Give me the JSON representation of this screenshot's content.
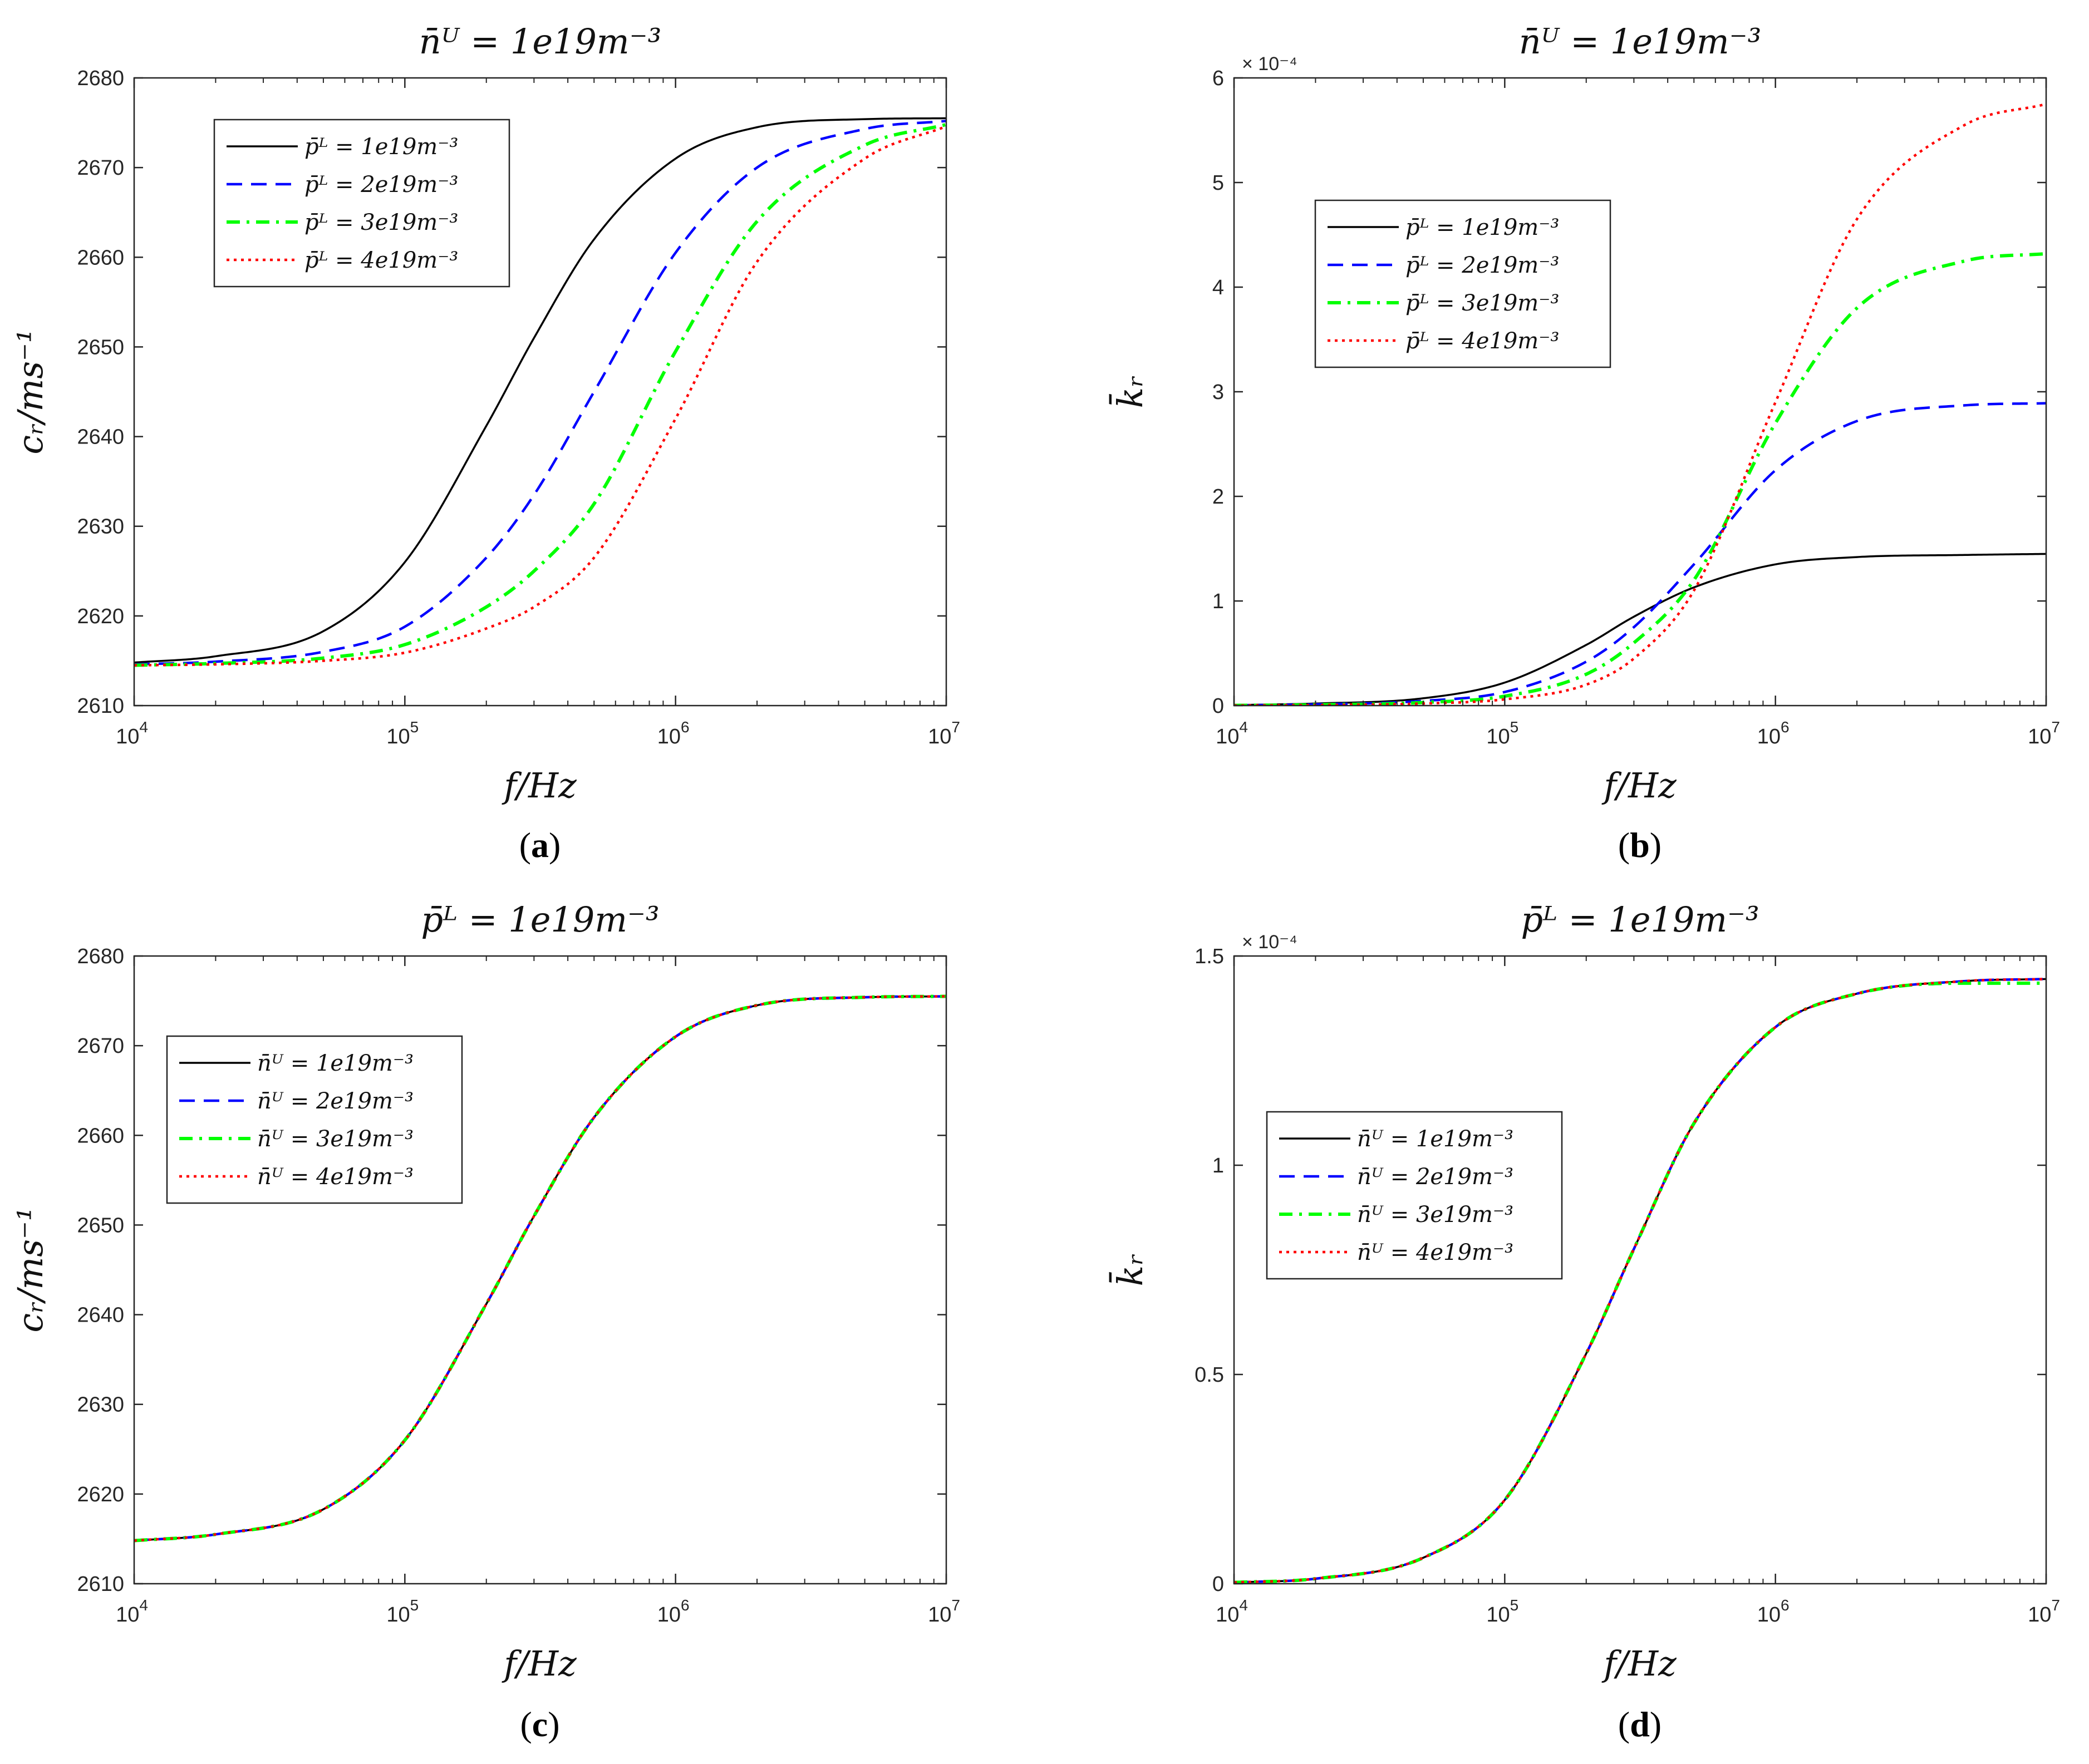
{
  "figure": {
    "captions": [
      "(a)",
      "(b)",
      "(c)",
      "(d)"
    ],
    "caption_parts": [
      {
        "open": "(",
        "letter": "a",
        "close": ")"
      },
      {
        "open": "(",
        "letter": "b",
        "close": ")"
      },
      {
        "open": "(",
        "letter": "c",
        "close": ")"
      },
      {
        "open": "(",
        "letter": "d",
        "close": ")"
      }
    ]
  },
  "chart_data": [
    {
      "type": "line",
      "xscale": "log",
      "title": "n̄ᵁ = 1e19m⁻³",
      "xlabel": "f/Hz",
      "ylabel": "cᵣ/ms⁻¹",
      "xlim": [
        10000,
        10000000
      ],
      "ylim": [
        2610,
        2680
      ],
      "xticks": [
        10000,
        100000,
        1000000,
        10000000
      ],
      "xtick_labels": [
        {
          "base": "10",
          "exp": "4"
        },
        {
          "base": "10",
          "exp": "5"
        },
        {
          "base": "10",
          "exp": "6"
        },
        {
          "base": "10",
          "exp": "7"
        }
      ],
      "yticks": [
        2610,
        2620,
        2630,
        2640,
        2650,
        2660,
        2670,
        2680
      ],
      "ytick_labels": [
        "2610",
        "2620",
        "2630",
        "2640",
        "2650",
        "2660",
        "2670",
        "2680"
      ],
      "exponent_label": "",
      "legend": "upper-left",
      "x": [
        10000,
        20000,
        50000,
        100000,
        200000,
        300000,
        500000,
        1000000,
        2000000,
        5000000,
        10000000
      ],
      "series": [
        {
          "name": "p̄ᴸ = 1e19m⁻³",
          "color": "#000000",
          "style": "solid",
          "values": [
            2614.8,
            2615.5,
            2618.3,
            2626.0,
            2641.2,
            2651.0,
            2662.0,
            2671.0,
            2674.5,
            2675.4,
            2675.5
          ]
        },
        {
          "name": "p̄ᴸ = 2e19m⁻³",
          "color": "#0000ff",
          "style": "dashed",
          "values": [
            2614.6,
            2614.9,
            2616.0,
            2618.8,
            2626.5,
            2633.5,
            2645.0,
            2660.5,
            2670.0,
            2674.3,
            2675.2
          ]
        },
        {
          "name": "p̄ᴸ = 3e19m⁻³",
          "color": "#00ff00",
          "style": "dashdot",
          "values": [
            2614.5,
            2614.7,
            2615.3,
            2616.8,
            2621.0,
            2625.0,
            2632.5,
            2649.5,
            2664.0,
            2672.5,
            2674.8
          ]
        },
        {
          "name": "p̄ᴸ = 4e19m⁻³",
          "color": "#ff0000",
          "style": "dotted",
          "values": [
            2614.5,
            2614.6,
            2615.0,
            2615.9,
            2618.6,
            2621.0,
            2626.5,
            2642.0,
            2659.5,
            2671.0,
            2674.6
          ]
        }
      ]
    },
    {
      "type": "line",
      "xscale": "log",
      "title": "n̄ᵁ = 1e19m⁻³",
      "xlabel": "f/Hz",
      "ylabel": "k̄ᵣ",
      "xlim": [
        10000,
        10000000
      ],
      "ylim": [
        0,
        6
      ],
      "xticks": [
        10000,
        100000,
        1000000,
        10000000
      ],
      "xtick_labels": [
        {
          "base": "10",
          "exp": "4"
        },
        {
          "base": "10",
          "exp": "5"
        },
        {
          "base": "10",
          "exp": "6"
        },
        {
          "base": "10",
          "exp": "7"
        }
      ],
      "yticks": [
        0,
        1,
        2,
        3,
        4,
        5,
        6
      ],
      "ytick_labels": [
        "0",
        "1",
        "2",
        "3",
        "4",
        "5",
        "6"
      ],
      "exponent_label": "× 10⁻⁴",
      "legend": "upper-left",
      "x": [
        10000,
        20000,
        50000,
        100000,
        200000,
        300000,
        500000,
        1000000,
        2000000,
        5000000,
        10000000
      ],
      "series": [
        {
          "name": "p̄ᴸ = 1e19m⁻³",
          "color": "#000000",
          "style": "solid",
          "values": [
            0.005,
            0.02,
            0.07,
            0.22,
            0.58,
            0.85,
            1.13,
            1.35,
            1.42,
            1.44,
            1.45
          ]
        },
        {
          "name": "p̄ᴸ = 2e19m⁻³",
          "color": "#0000ff",
          "style": "dashed",
          "values": [
            0.003,
            0.012,
            0.045,
            0.13,
            0.42,
            0.75,
            1.35,
            2.25,
            2.72,
            2.87,
            2.89
          ]
        },
        {
          "name": "p̄ᴸ = 3e19m⁻³",
          "color": "#00ff00",
          "style": "dashdot",
          "values": [
            0.002,
            0.008,
            0.03,
            0.09,
            0.3,
            0.6,
            1.2,
            2.7,
            3.8,
            4.25,
            4.32
          ]
        },
        {
          "name": "p̄ᴸ = 4e19m⁻³",
          "color": "#ff0000",
          "style": "dotted",
          "values": [
            0.001,
            0.005,
            0.02,
            0.06,
            0.2,
            0.45,
            1.1,
            2.9,
            4.65,
            5.55,
            5.75
          ]
        }
      ]
    },
    {
      "type": "line",
      "xscale": "log",
      "title": "p̄ᴸ = 1e19m⁻³",
      "xlabel": "f/Hz",
      "ylabel": "cᵣ/ms⁻¹",
      "xlim": [
        10000,
        10000000
      ],
      "ylim": [
        2610,
        2680
      ],
      "xticks": [
        10000,
        100000,
        1000000,
        10000000
      ],
      "xtick_labels": [
        {
          "base": "10",
          "exp": "4"
        },
        {
          "base": "10",
          "exp": "5"
        },
        {
          "base": "10",
          "exp": "6"
        },
        {
          "base": "10",
          "exp": "7"
        }
      ],
      "yticks": [
        2610,
        2620,
        2630,
        2640,
        2650,
        2660,
        2670,
        2680
      ],
      "ytick_labels": [
        "2610",
        "2620",
        "2630",
        "2640",
        "2650",
        "2660",
        "2670",
        "2680"
      ],
      "exponent_label": "",
      "legend": "center-left",
      "x": [
        10000,
        20000,
        50000,
        100000,
        200000,
        300000,
        500000,
        1000000,
        2000000,
        5000000,
        10000000
      ],
      "series": [
        {
          "name": "n̄ᵁ = 1e19m⁻³",
          "color": "#000000",
          "style": "solid",
          "values": [
            2614.8,
            2615.5,
            2618.3,
            2626.0,
            2641.2,
            2651.0,
            2662.0,
            2671.0,
            2674.5,
            2675.4,
            2675.5
          ]
        },
        {
          "name": "n̄ᵁ = 2e19m⁻³",
          "color": "#0000ff",
          "style": "dashed",
          "values": [
            2614.8,
            2615.5,
            2618.3,
            2626.0,
            2641.2,
            2651.0,
            2662.0,
            2671.0,
            2674.5,
            2675.4,
            2675.5
          ]
        },
        {
          "name": "n̄ᵁ = 3e19m⁻³",
          "color": "#00ff00",
          "style": "dashdot",
          "values": [
            2614.8,
            2615.5,
            2618.3,
            2626.0,
            2641.2,
            2651.0,
            2662.0,
            2671.0,
            2674.5,
            2675.4,
            2675.5
          ]
        },
        {
          "name": "n̄ᵁ = 4e19m⁻³",
          "color": "#ff0000",
          "style": "dotted",
          "values": [
            2614.8,
            2615.5,
            2618.3,
            2626.0,
            2641.2,
            2651.0,
            2662.0,
            2671.0,
            2674.5,
            2675.4,
            2675.5
          ]
        }
      ]
    },
    {
      "type": "line",
      "xscale": "log",
      "title": "p̄ᴸ = 1e19m⁻³",
      "xlabel": "f/Hz",
      "ylabel": "k̄ᵣ",
      "xlim": [
        10000,
        10000000
      ],
      "ylim": [
        0,
        1.5
      ],
      "xticks": [
        10000,
        100000,
        1000000,
        10000000
      ],
      "xtick_labels": [
        {
          "base": "10",
          "exp": "4"
        },
        {
          "base": "10",
          "exp": "5"
        },
        {
          "base": "10",
          "exp": "6"
        },
        {
          "base": "10",
          "exp": "7"
        }
      ],
      "yticks": [
        0,
        0.5,
        1,
        1.5
      ],
      "ytick_labels": [
        "0",
        "0.5",
        "1",
        "1.5"
      ],
      "exponent_label": "× 10⁻⁴",
      "legend": "center-left",
      "x": [
        10000,
        20000,
        50000,
        100000,
        200000,
        300000,
        500000,
        1000000,
        2000000,
        5000000,
        10000000
      ],
      "series": [
        {
          "name": "n̄ᵁ = 1e19m⁻³",
          "color": "#000000",
          "style": "solid",
          "values": [
            0.003,
            0.012,
            0.062,
            0.2,
            0.55,
            0.8,
            1.1,
            1.33,
            1.41,
            1.44,
            1.445
          ]
        },
        {
          "name": "n̄ᵁ = 2e19m⁻³",
          "color": "#0000ff",
          "style": "dashed",
          "values": [
            0.003,
            0.012,
            0.062,
            0.2,
            0.55,
            0.8,
            1.1,
            1.33,
            1.41,
            1.44,
            1.445
          ]
        },
        {
          "name": "n̄ᵁ = 3e19m⁻³",
          "color": "#00ff00",
          "style": "dashdot",
          "values": [
            0.003,
            0.012,
            0.062,
            0.2,
            0.55,
            0.8,
            1.1,
            1.33,
            1.41,
            1.435,
            1.435
          ]
        },
        {
          "name": "n̄ᵁ = 4e19m⁻³",
          "color": "#ff0000",
          "style": "dotted",
          "values": [
            0.003,
            0.012,
            0.062,
            0.2,
            0.55,
            0.8,
            1.1,
            1.33,
            1.41,
            1.44,
            1.445
          ]
        }
      ]
    }
  ]
}
